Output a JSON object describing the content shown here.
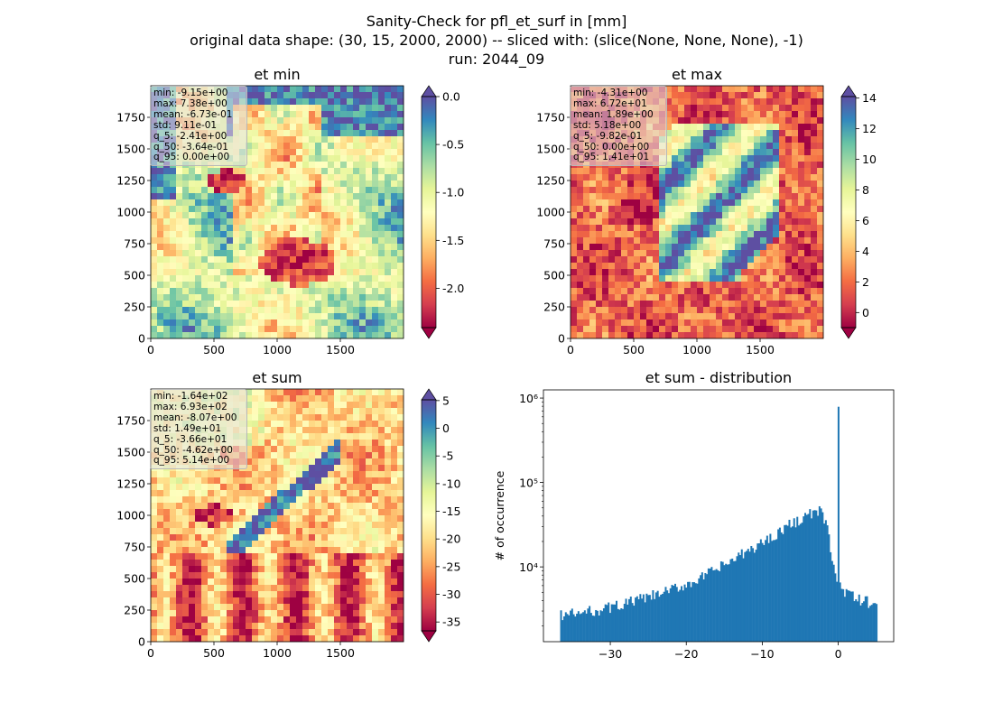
{
  "figure": {
    "title_line1": "Sanity-Check for pfl_et_surf in [mm]",
    "title_line2": "original data shape: (30, 15, 2000, 2000) -- sliced with: (slice(None, None, None), -1)",
    "title_line3": "run: 2044_09"
  },
  "colors": {
    "spectral": [
      "#9e0142",
      "#d53e4f",
      "#f46d43",
      "#fdae61",
      "#fee08b",
      "#ffffbf",
      "#e6f598",
      "#abdda4",
      "#66c2a5",
      "#3288bd",
      "#5e4fa2"
    ],
    "histogram_bar": "#1f77b4"
  },
  "maps": [
    {
      "title": "et min",
      "x_ticks": [
        "0",
        "500",
        "1000",
        "1500"
      ],
      "y_ticks": [
        "0",
        "250",
        "500",
        "750",
        "1000",
        "1250",
        "1500",
        "1750"
      ],
      "stats": [
        "min: -9.15e+00",
        "max: 7.38e+00",
        "mean: -6.73e-01",
        "std: 9.11e-01",
        "q_5: -2.41e+00",
        "q_50: -3.64e-01",
        "q_95: 0.00e+00"
      ],
      "colorbar": {
        "range": [
          -2.41,
          0.0
        ],
        "ticks": [
          "0.0",
          "-0.5",
          "-1.0",
          "-1.5",
          "-2.0"
        ],
        "tick_values": [
          0.0,
          -0.5,
          -1.0,
          -1.5,
          -2.0
        ]
      }
    },
    {
      "title": "et max",
      "x_ticks": [
        "0",
        "500",
        "1000",
        "1500"
      ],
      "y_ticks": [
        "0",
        "250",
        "500",
        "750",
        "1000",
        "1250",
        "1500",
        "1750"
      ],
      "stats": [
        "min: -4.31e+00",
        "max: 6.72e+01",
        "mean: 1.89e+00",
        "std: 5.18e+00",
        "q_5: -9.82e-01",
        "q_50: 0.00e+00",
        "q_95: 1.41e+01"
      ],
      "colorbar": {
        "range": [
          -0.982,
          14.1
        ],
        "ticks": [
          "14",
          "12",
          "10",
          "8",
          "6",
          "4",
          "2",
          "0"
        ],
        "tick_values": [
          14,
          12,
          10,
          8,
          6,
          4,
          2,
          0
        ]
      }
    },
    {
      "title": "et sum",
      "x_ticks": [
        "0",
        "500",
        "1000",
        "1500"
      ],
      "y_ticks": [
        "0",
        "250",
        "500",
        "750",
        "1000",
        "1250",
        "1500",
        "1750"
      ],
      "stats": [
        "min: -1.64e+02",
        "max: 6.93e+02",
        "mean: -8.07e+00",
        "std: 1.49e+01",
        "q_5: -3.66e+01",
        "q_50: -4.62e+00",
        "q_95: 5.14e+00"
      ],
      "colorbar": {
        "range": [
          -36.6,
          5.14
        ],
        "ticks": [
          "5",
          "0",
          "-5",
          "-10",
          "-15",
          "-20",
          "-25",
          "-30",
          "-35"
        ],
        "tick_values": [
          5,
          0,
          -5,
          -10,
          -15,
          -20,
          -25,
          -30,
          -35
        ]
      }
    }
  ],
  "chart_data": {
    "type": "bar",
    "title": "et sum - distribution",
    "xlabel": "",
    "ylabel": "# of occurrence",
    "y_scale": "log",
    "x_ticks": [
      "−30",
      "−20",
      "−10",
      "0"
    ],
    "x_tick_values": [
      -30,
      -20,
      -10,
      0
    ],
    "y_ticks": [
      "10⁴",
      "10⁵",
      "10⁶"
    ],
    "y_tick_values": [
      10000,
      100000,
      1000000
    ],
    "xlim": [
      -38.8,
      7.3
    ],
    "ylim": [
      1300,
      1250000
    ],
    "bin_range": [
      -36.6,
      5.14
    ],
    "profile": [
      [
        -36.6,
        2700
      ],
      [
        -34,
        2800
      ],
      [
        -30,
        3300
      ],
      [
        -27,
        3900
      ],
      [
        -24,
        4600
      ],
      [
        -21,
        5700
      ],
      [
        -18,
        7400
      ],
      [
        -15,
        10500
      ],
      [
        -12,
        15000
      ],
      [
        -9,
        22000
      ],
      [
        -7,
        29000
      ],
      [
        -5,
        37000
      ],
      [
        -4,
        41000
      ],
      [
        -3,
        44000
      ],
      [
        -2.2,
        45000
      ],
      [
        -1.6,
        32000
      ],
      [
        -1.0,
        17000
      ],
      [
        -0.5,
        9000
      ],
      [
        -0.15,
        6000
      ]
    ],
    "peak": {
      "x": 0.0,
      "y": 800000
    },
    "tail_after_peak": [
      [
        0.15,
        6000
      ],
      [
        1,
        5000
      ],
      [
        2,
        4300
      ],
      [
        3,
        4000
      ],
      [
        4,
        3800
      ],
      [
        5.14,
        3700
      ]
    ]
  }
}
